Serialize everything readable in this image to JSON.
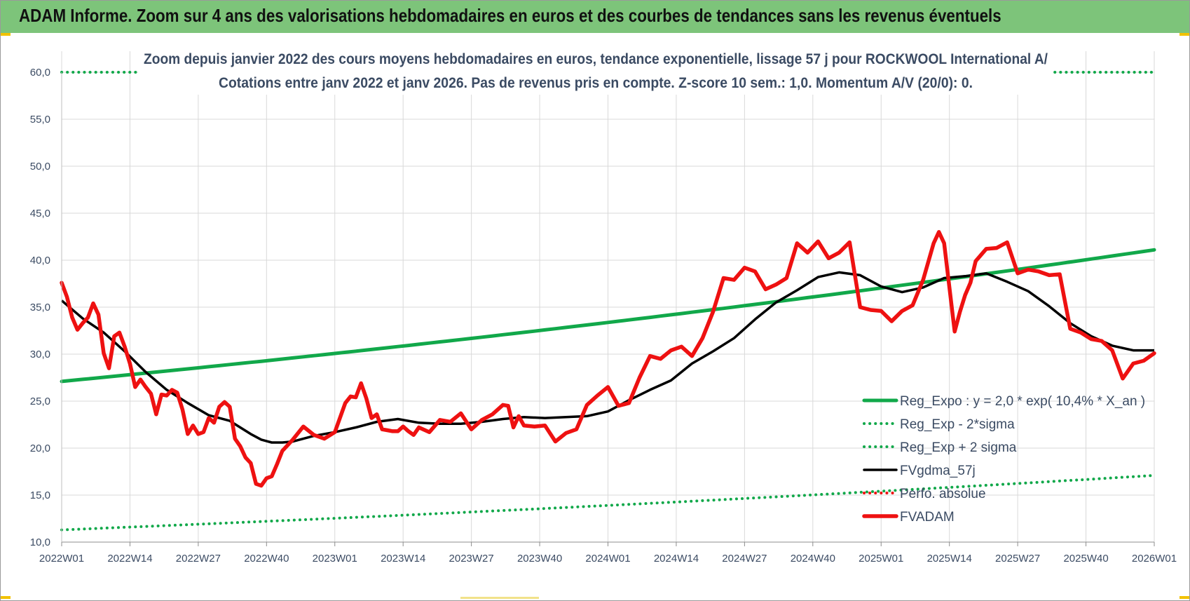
{
  "header": {
    "title": "ADAM Informe. Zoom sur 4 ans des valorisations hebdomadaires en euros et des courbes de tendances sans les revenus éventuels"
  },
  "colors": {
    "banner": "#7dc47a",
    "reg_expo": "#11a84a",
    "sigma": "#11a84a",
    "fvgdma": "#000000",
    "fvadam": "#ee1111",
    "perfo": "#ee1111",
    "grid": "#d9d9d9",
    "text": "#3b4b63"
  },
  "chart_data": {
    "type": "line",
    "subtitle_line1": "Zoom depuis janvier 2022 des cours moyens hebdomadaires en euros, tendance exponentielle, lissage 57 j pour ROCKWOOL International A/",
    "subtitle_line2": "Cotations entre janv 2022 et janv 2026. Pas de revenus pris en compte. Z-score 10 sem.: 1,0. Momentum A/V (20/0): 0.",
    "ylim": [
      10,
      60
    ],
    "y_ticks": [
      "10,0",
      "15,0",
      "20,0",
      "25,0",
      "30,0",
      "35,0",
      "40,0",
      "45,0",
      "50,0",
      "55,0",
      "60,0"
    ],
    "x_ticks": [
      "2022W01",
      "2022W14",
      "2022W27",
      "2022W40",
      "2023W01",
      "2023W14",
      "2023W27",
      "2023W40",
      "2024W01",
      "2024W14",
      "2024W27",
      "2024W40",
      "2025W01",
      "2025W14",
      "2025W27",
      "2025W40",
      "2026W01"
    ],
    "x_range_weeks": [
      0,
      208
    ],
    "grid": true,
    "legend_position": "bottom-right",
    "legend": [
      {
        "key": "reg_expo",
        "label": "Reg_Expo : y = 2,0 * exp( 10,4% *  X_an )",
        "style": "solid",
        "color": "#11a84a"
      },
      {
        "key": "sigma_minus",
        "label": "Reg_Exp - 2*sigma",
        "style": "dotted",
        "color": "#11a84a"
      },
      {
        "key": "sigma_plus",
        "label": "Reg_Exp + 2 sigma",
        "style": "dotted",
        "color": "#11a84a"
      },
      {
        "key": "fvgdma",
        "label": "FVgdma_57j",
        "style": "solid",
        "color": "#000000"
      },
      {
        "key": "perfo",
        "label": "Perfo. absolue",
        "style": "dotted",
        "color": "#ee1111"
      },
      {
        "key": "fvadam",
        "label": "FVADAM",
        "style": "solid-thick",
        "color": "#ee1111"
      }
    ],
    "series": {
      "reg_expo": {
        "name": "Reg_Expo : y = 2,0 * exp( 10,4% *  X_an )",
        "x": [
          0,
          208
        ],
        "y": [
          27.1,
          41.1
        ],
        "curve": "exponential"
      },
      "sigma_minus": {
        "name": "Reg_Exp - 2*sigma",
        "x": [
          0,
          208
        ],
        "y": [
          11.3,
          17.1
        ],
        "curve": "exponential"
      },
      "sigma_plus": {
        "name": "Reg_Exp + 2 sigma",
        "x": [
          0,
          15,
          188,
          208
        ],
        "y": [
          60,
          60,
          60,
          60
        ],
        "segments": [
          [
            0,
            15
          ],
          [
            188,
            208
          ]
        ]
      },
      "fvgdma": {
        "name": "FVgdma_57j",
        "x": [
          0,
          4,
          8,
          12,
          16,
          20,
          24,
          28,
          32,
          36,
          38,
          40,
          42,
          44,
          48,
          52,
          56,
          60,
          64,
          68,
          72,
          76,
          80,
          84,
          88,
          92,
          96,
          100,
          104,
          108,
          112,
          116,
          120,
          124,
          128,
          132,
          136,
          140,
          142,
          144,
          148,
          152,
          156,
          160,
          164,
          168,
          172,
          176,
          180,
          184,
          188,
          192,
          196,
          200,
          204,
          208
        ],
        "y": [
          35.7,
          33.8,
          32.3,
          30.3,
          28.1,
          26.2,
          24.8,
          23.5,
          22.9,
          21.5,
          20.9,
          20.6,
          20.6,
          20.7,
          21.3,
          21.7,
          22.2,
          22.8,
          23.1,
          22.7,
          22.6,
          22.6,
          22.8,
          23.1,
          23.3,
          23.2,
          23.3,
          23.4,
          23.9,
          25.1,
          26.2,
          27.2,
          29.0,
          30.3,
          31.7,
          33.7,
          35.5,
          36.8,
          37.5,
          38.2,
          38.7,
          38.4,
          37.2,
          36.6,
          37.1,
          38.1,
          38.3,
          38.6,
          37.7,
          36.7,
          35.1,
          33.3,
          31.9,
          30.9,
          30.4,
          30.4
        ]
      },
      "fvadam": {
        "name": "FVADAM",
        "x": [
          0,
          1,
          2,
          3,
          4,
          5,
          6,
          7,
          8,
          9,
          10,
          11,
          12,
          13,
          14,
          15,
          16,
          17,
          18,
          19,
          20,
          21,
          22,
          23,
          24,
          25,
          26,
          27,
          28,
          29,
          30,
          31,
          32,
          33,
          34,
          35,
          36,
          37,
          38,
          39,
          40,
          41,
          42,
          44,
          46,
          48,
          50,
          52,
          54,
          55,
          56,
          57,
          58,
          59,
          60,
          61,
          62,
          63,
          64,
          65,
          66,
          67,
          68,
          70,
          72,
          74,
          76,
          78,
          80,
          82,
          84,
          85,
          86,
          87,
          88,
          90,
          92,
          94,
          96,
          98,
          100,
          102,
          104,
          106,
          108,
          110,
          112,
          114,
          116,
          118,
          120,
          122,
          124,
          126,
          128,
          130,
          132,
          134,
          136,
          138,
          140,
          142,
          144,
          146,
          148,
          150,
          152,
          154,
          156,
          158,
          160,
          162,
          164,
          166,
          167,
          168,
          170,
          171,
          172,
          173,
          174,
          176,
          178,
          180,
          182,
          184,
          186,
          188,
          190,
          192,
          194,
          196,
          198,
          200,
          202,
          204,
          206,
          208
        ],
        "y": [
          37.6,
          36.1,
          33.9,
          32.6,
          33.3,
          33.9,
          35.4,
          34.2,
          30.1,
          28.5,
          31.9,
          32.3,
          30.8,
          29.0,
          26.5,
          27.3,
          26.5,
          25.8,
          23.6,
          25.7,
          25.6,
          26.2,
          25.9,
          24.1,
          21.5,
          22.4,
          21.5,
          21.7,
          23.2,
          22.7,
          24.4,
          24.9,
          24.4,
          21.0,
          20.2,
          19.0,
          18.4,
          16.2,
          16.0,
          16.8,
          17.0,
          18.3,
          19.7,
          20.9,
          22.3,
          21.4,
          21.0,
          21.7,
          24.8,
          25.5,
          25.4,
          26.9,
          25.3,
          23.2,
          23.6,
          22.0,
          21.9,
          21.8,
          21.8,
          22.3,
          21.8,
          21.4,
          22.2,
          21.7,
          23.0,
          22.8,
          23.7,
          22.0,
          23.0,
          23.6,
          24.6,
          24.5,
          22.2,
          23.4,
          22.4,
          22.3,
          22.4,
          20.7,
          21.6,
          22.0,
          24.6,
          25.6,
          26.5,
          24.5,
          24.8,
          27.5,
          29.8,
          29.5,
          30.4,
          30.8,
          29.8,
          31.7,
          34.5,
          38.1,
          37.9,
          39.2,
          38.8,
          36.9,
          37.4,
          38.1,
          41.8,
          40.8,
          42.0,
          40.2,
          40.8,
          41.9,
          35.0,
          34.7,
          34.6,
          33.5,
          34.6,
          35.2,
          37.9,
          41.8,
          43.0,
          41.8,
          32.4,
          34.5,
          36.3,
          37.6,
          39.9,
          41.2,
          41.3,
          41.9,
          38.6,
          39.0,
          38.8,
          38.4,
          38.5,
          32.7,
          32.3,
          31.6,
          31.4,
          30.4,
          27.4,
          29.0,
          29.3,
          30.1
        ]
      }
    }
  }
}
